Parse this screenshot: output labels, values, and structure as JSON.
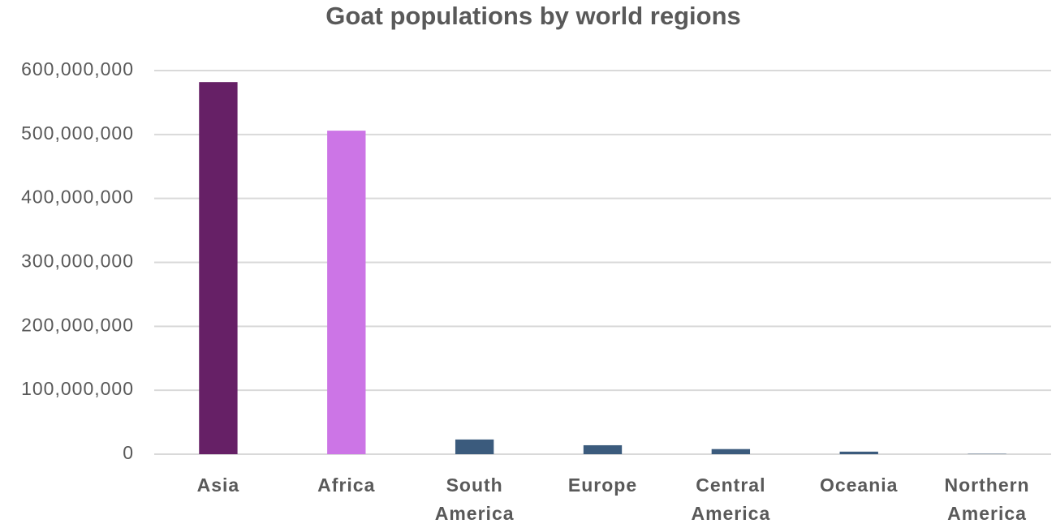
{
  "chart_data": {
    "type": "bar",
    "title": "Goat populations by world regions",
    "categories": [
      "Asia",
      "Africa",
      "South America",
      "Europe",
      "Central America",
      "Oceania",
      "Northern America"
    ],
    "values": [
      582000000,
      506000000,
      23000000,
      14000000,
      8000000,
      4000000,
      500000
    ],
    "colors": [
      "#662066",
      "#cc75e6",
      "#3b5b7d",
      "#3b5b7d",
      "#3b5b7d",
      "#3b5b7d",
      "#3b5b7d"
    ],
    "ylim": [
      0,
      600000000
    ],
    "yticks": [
      0,
      {
        "value": 100000000,
        "label": "100,000,000"
      },
      {
        "value": 200000000,
        "label": "200,000,000"
      },
      {
        "value": 300000000,
        "label": "300,000,000"
      },
      {
        "value": 400000000,
        "label": "400,000,000"
      },
      {
        "value": 500000000,
        "label": "500,000,000"
      },
      {
        "value": 600000000,
        "label": "600,000,000"
      }
    ],
    "grid": true
  }
}
